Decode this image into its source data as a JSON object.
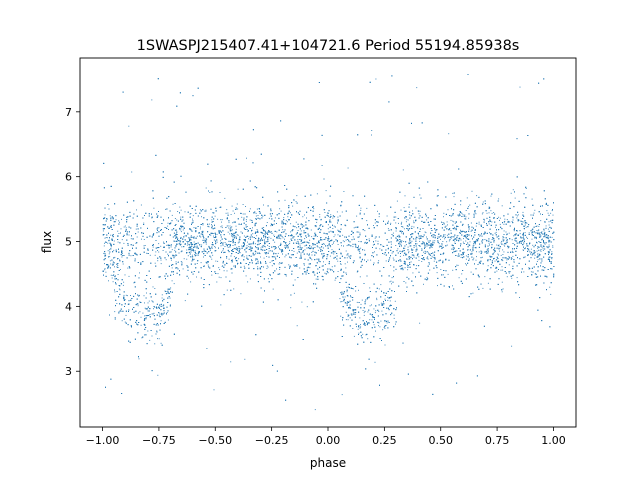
{
  "chart_data": {
    "type": "scatter",
    "title": "1SWASPJ215407.41+104721.6 Period 55194.85938s",
    "xlabel": "phase",
    "ylabel": "flux",
    "xlim": [
      -1.1,
      1.1
    ],
    "ylim": [
      2.14,
      7.83
    ],
    "grid": false,
    "legend": "none",
    "marker_color": "#1f77b4",
    "x_ticks": [
      -1.0,
      -0.75,
      -0.5,
      -0.25,
      0.0,
      0.25,
      0.5,
      0.75,
      1.0
    ],
    "x_tick_labels": [
      "−1.00",
      "−0.75",
      "−0.50",
      "−0.25",
      "0.00",
      "0.25",
      "0.50",
      "0.75",
      "1.00"
    ],
    "y_ticks": [
      3,
      4,
      5,
      6,
      7
    ],
    "y_tick_labels": [
      "3",
      "4",
      "5",
      "6",
      "7"
    ],
    "baseline_flux": 5.0,
    "baseline_scatter": 0.3,
    "eclipse_branch": {
      "phase": [
        -0.95,
        -0.9,
        -0.85,
        -0.8,
        -0.75,
        -0.7,
        0.05,
        0.1,
        0.15,
        0.2,
        0.25,
        0.3
      ],
      "flux": [
        4.3,
        4.0,
        3.9,
        3.85,
        3.9,
        4.1,
        4.2,
        3.95,
        3.85,
        3.85,
        3.9,
        4.2
      ]
    },
    "outlier_flux_range": [
      2.4,
      7.6
    ]
  }
}
